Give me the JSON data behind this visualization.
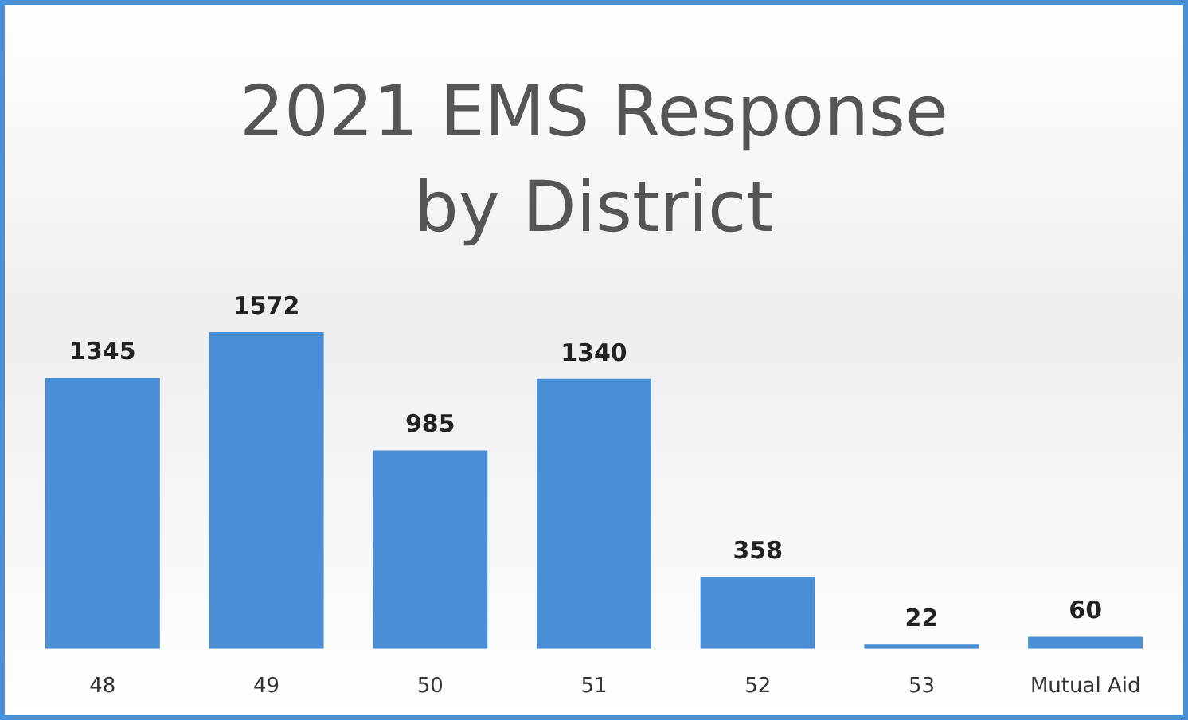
{
  "chart_data": {
    "type": "bar",
    "title": "2021 EMS Response by District",
    "categories": [
      "48",
      "49",
      "50",
      "51",
      "52",
      "53",
      "Mutual Aid"
    ],
    "values": [
      1345,
      1572,
      985,
      1340,
      358,
      22,
      60
    ],
    "color": "#4a8fd6",
    "data_labels": true,
    "tick_labels": "x",
    "grid": false
  }
}
